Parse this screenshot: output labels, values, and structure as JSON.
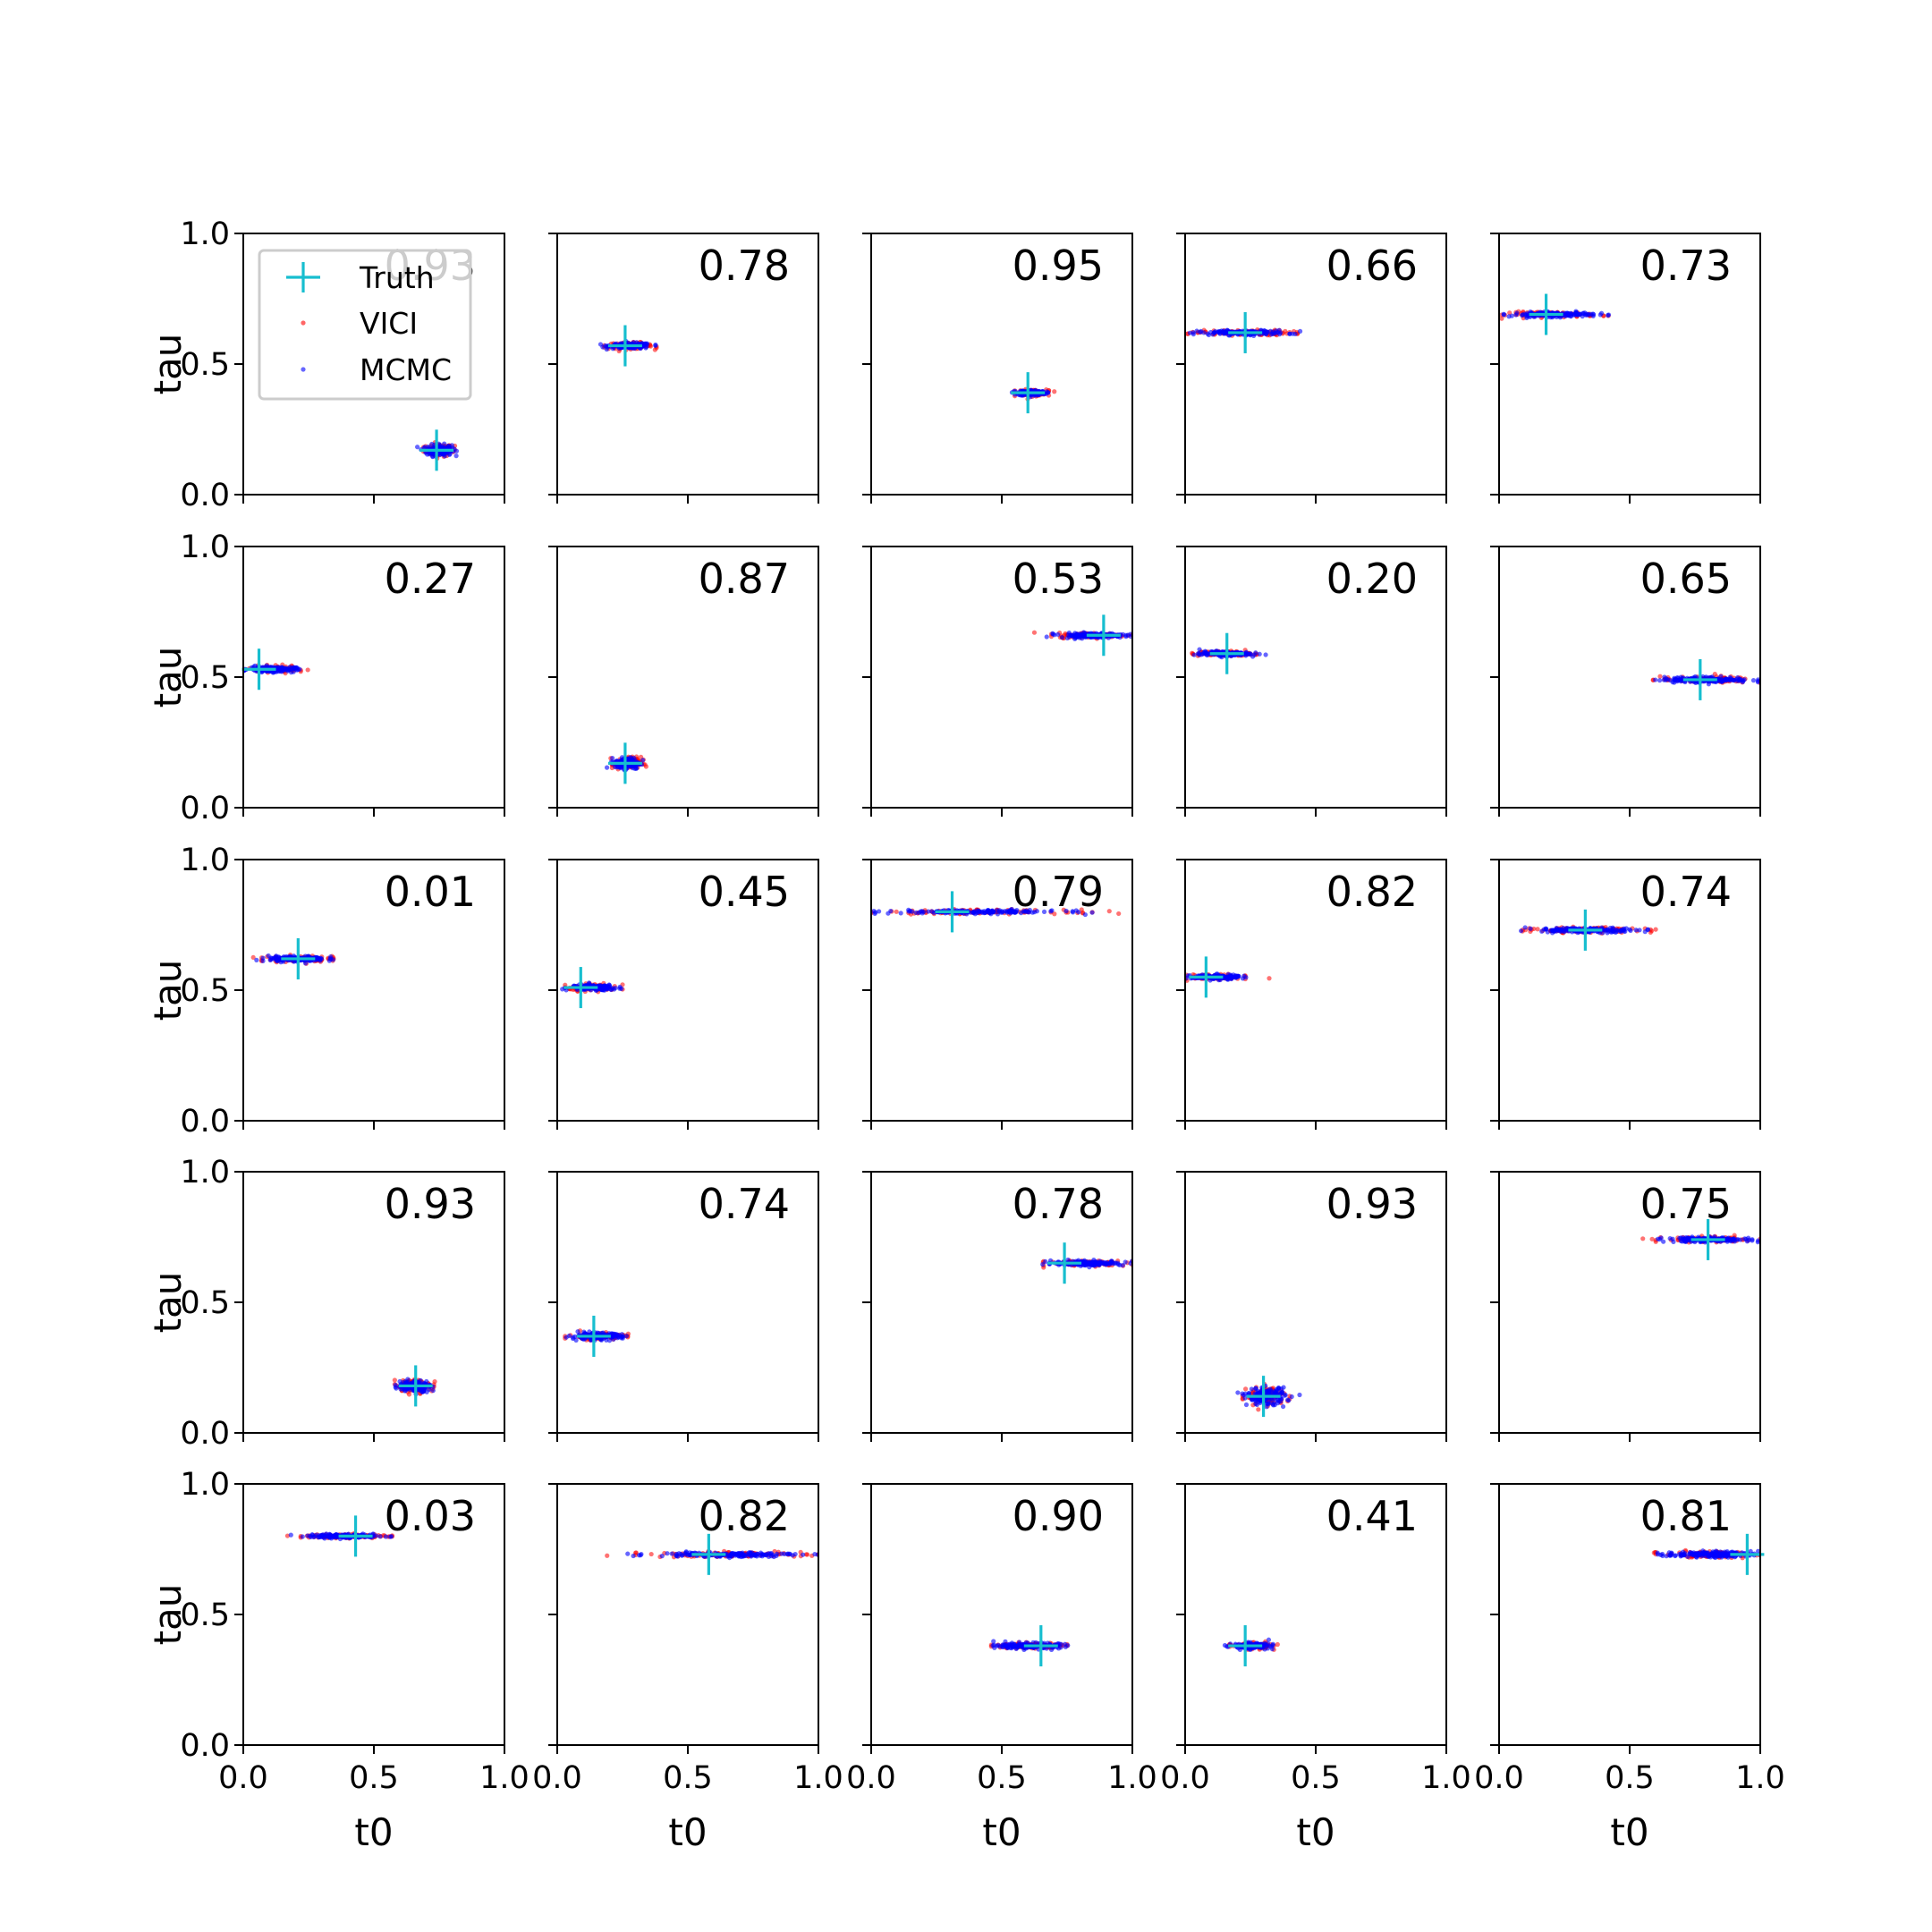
{
  "chart_data": {
    "type": "scatter",
    "grid": false,
    "rows": 5,
    "cols": 5,
    "xlabel": "t0",
    "ylabel": "tau",
    "xlim": [
      0.0,
      1.0
    ],
    "ylim": [
      0.0,
      1.0
    ],
    "xticks": [
      "0.0",
      "0.5",
      "1.0"
    ],
    "yticks": [
      "0.0",
      "0.5",
      "1.0"
    ],
    "legend": {
      "placement": "upper-left of first panel",
      "entries": [
        {
          "label": "Truth",
          "marker": "plus",
          "color": "#17becf"
        },
        {
          "label": "VICI",
          "marker": "dot",
          "color": "#ff0000"
        },
        {
          "label": "MCMC",
          "marker": "dot",
          "color": "#0000ff"
        }
      ]
    },
    "series_colors": {
      "truth": "#17becf",
      "vici": "#ff0000",
      "mcmc": "#0000ff"
    },
    "panels": [
      {
        "label": "0.93",
        "truth": [
          0.74,
          0.17
        ],
        "x_range": [
          0.69,
          0.81
        ],
        "y_center": 0.17,
        "spread_y": 0.012
      },
      {
        "label": "0.78",
        "truth": [
          0.26,
          0.57
        ],
        "x_range": [
          0.18,
          0.38
        ],
        "y_center": 0.57,
        "spread_y": 0.006
      },
      {
        "label": "0.95",
        "truth": [
          0.6,
          0.39
        ],
        "x_range": [
          0.55,
          0.68
        ],
        "y_center": 0.39,
        "spread_y": 0.006
      },
      {
        "label": "0.66",
        "truth": [
          0.23,
          0.62
        ],
        "x_range": [
          0.01,
          0.43
        ],
        "y_center": 0.62,
        "spread_y": 0.005
      },
      {
        "label": "0.73",
        "truth": [
          0.18,
          0.69
        ],
        "x_range": [
          0.01,
          0.4
        ],
        "y_center": 0.69,
        "spread_y": 0.005
      },
      {
        "label": "0.27",
        "truth": [
          0.06,
          0.53
        ],
        "x_range": [
          0.0,
          0.22
        ],
        "y_center": 0.53,
        "spread_y": 0.006
      },
      {
        "label": "0.87",
        "truth": [
          0.26,
          0.17
        ],
        "x_range": [
          0.21,
          0.33
        ],
        "y_center": 0.17,
        "spread_y": 0.012
      },
      {
        "label": "0.53",
        "truth": [
          0.89,
          0.66
        ],
        "x_range": [
          0.69,
          1.0
        ],
        "y_center": 0.66,
        "spread_y": 0.005
      },
      {
        "label": "0.20",
        "truth": [
          0.16,
          0.59
        ],
        "x_range": [
          0.03,
          0.27
        ],
        "y_center": 0.59,
        "spread_y": 0.005
      },
      {
        "label": "0.65",
        "truth": [
          0.77,
          0.49
        ],
        "x_range": [
          0.59,
          1.0
        ],
        "y_center": 0.49,
        "spread_y": 0.006
      },
      {
        "label": "0.01",
        "truth": [
          0.21,
          0.62
        ],
        "x_range": [
          0.07,
          0.34
        ],
        "y_center": 0.62,
        "spread_y": 0.006
      },
      {
        "label": "0.45",
        "truth": [
          0.09,
          0.51
        ],
        "x_range": [
          0.03,
          0.25
        ],
        "y_center": 0.51,
        "spread_y": 0.006
      },
      {
        "label": "0.79",
        "truth": [
          0.31,
          0.8
        ],
        "x_range": [
          0.0,
          0.81
        ],
        "y_center": 0.8,
        "spread_y": 0.004
      },
      {
        "label": "0.82",
        "truth": [
          0.08,
          0.55
        ],
        "x_range": [
          0.0,
          0.23
        ],
        "y_center": 0.55,
        "spread_y": 0.005
      },
      {
        "label": "0.74",
        "truth": [
          0.33,
          0.73
        ],
        "x_range": [
          0.09,
          0.58
        ],
        "y_center": 0.73,
        "spread_y": 0.005
      },
      {
        "label": "0.93",
        "truth": [
          0.66,
          0.18
        ],
        "x_range": [
          0.58,
          0.73
        ],
        "y_center": 0.18,
        "spread_y": 0.012
      },
      {
        "label": "0.74",
        "truth": [
          0.14,
          0.37
        ],
        "x_range": [
          0.03,
          0.27
        ],
        "y_center": 0.37,
        "spread_y": 0.007
      },
      {
        "label": "0.78",
        "truth": [
          0.74,
          0.65
        ],
        "x_range": [
          0.66,
          1.0
        ],
        "y_center": 0.65,
        "spread_y": 0.005
      },
      {
        "label": "0.93",
        "truth": [
          0.3,
          0.14
        ],
        "x_range": [
          0.22,
          0.4
        ],
        "y_center": 0.14,
        "spread_y": 0.018
      },
      {
        "label": "0.75",
        "truth": [
          0.8,
          0.74
        ],
        "x_range": [
          0.6,
          1.0
        ],
        "y_center": 0.74,
        "spread_y": 0.005
      },
      {
        "label": "0.03",
        "truth": [
          0.43,
          0.8
        ],
        "x_range": [
          0.22,
          0.57
        ],
        "y_center": 0.8,
        "spread_y": 0.004
      },
      {
        "label": "0.82",
        "truth": [
          0.58,
          0.73
        ],
        "x_range": [
          0.3,
          1.0
        ],
        "y_center": 0.73,
        "spread_y": 0.005
      },
      {
        "label": "0.90",
        "truth": [
          0.65,
          0.38
        ],
        "x_range": [
          0.46,
          0.75
        ],
        "y_center": 0.38,
        "spread_y": 0.006
      },
      {
        "label": "0.41",
        "truth": [
          0.23,
          0.38
        ],
        "x_range": [
          0.17,
          0.34
        ],
        "y_center": 0.38,
        "spread_y": 0.006
      },
      {
        "label": "0.81",
        "truth": [
          0.95,
          0.73
        ],
        "x_range": [
          0.6,
          1.0
        ],
        "y_center": 0.73,
        "spread_y": 0.006
      }
    ]
  }
}
